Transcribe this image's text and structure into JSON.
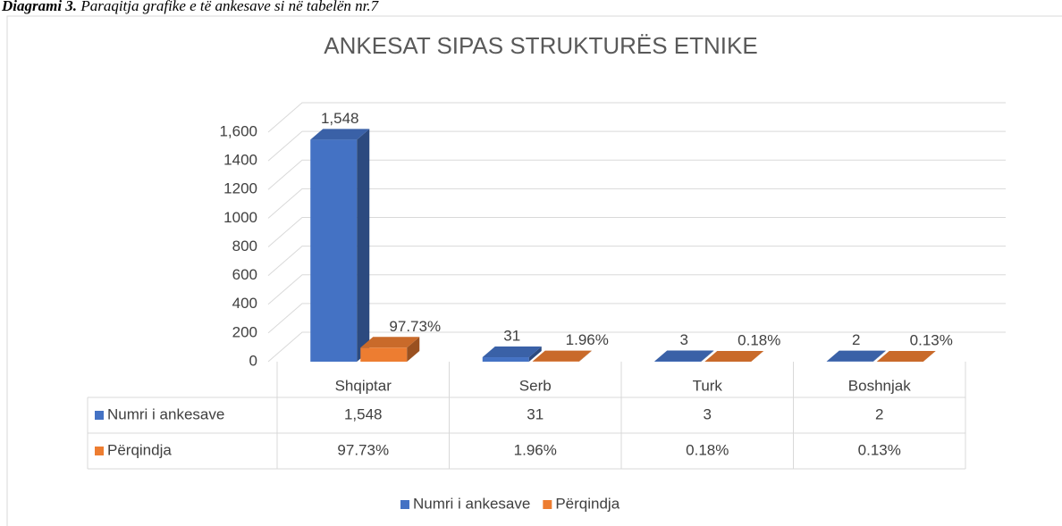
{
  "chart_data": {
    "type": "bar3d",
    "caption_label": "Diagrami 3.",
    "caption_text": "Paraqitja grafike e të ankesave si në tabelën nr.7",
    "title": "ANKESAT SIPAS STRUKTURËS ETNIKE",
    "categories": [
      "Shqiptar",
      "Serb",
      "Turk",
      "Boshnjak"
    ],
    "series": [
      {
        "name": "Numri i ankesave",
        "color": "#4472c4",
        "values": [
          1548,
          31,
          3,
          2
        ],
        "value_labels": [
          "1,548",
          "31",
          "3",
          "2"
        ]
      },
      {
        "name": "Përqindja",
        "color": "#ed7d31",
        "values": [
          97.73,
          1.96,
          0.18,
          0.13
        ],
        "value_labels": [
          "97.73%",
          "1.96%",
          "0.18%",
          "0.13%"
        ]
      }
    ],
    "ylim": [
      0,
      1600
    ],
    "yticks": [
      0,
      200,
      400,
      600,
      800,
      1000,
      1200,
      1400,
      {
        "value": 1600,
        "label": "1,600"
      }
    ],
    "grid": true,
    "legend": "bottom",
    "data_table": true
  }
}
